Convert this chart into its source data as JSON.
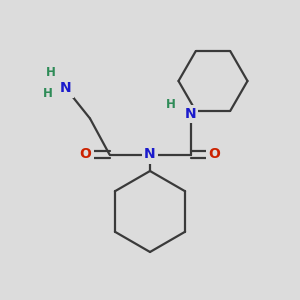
{
  "bg_color": "#dcdcdc",
  "atom_colors": {
    "C": "#3a3a3a",
    "N": "#1a1acc",
    "O": "#cc2200",
    "H": "#2e8b57"
  },
  "bond_color": "#3a3a3a",
  "bond_lw": 1.6,
  "figsize": [
    3.0,
    3.0
  ],
  "dpi": 100,
  "xlim": [
    0,
    10
  ],
  "ylim": [
    0,
    10
  ],
  "font_size_atom": 10,
  "font_size_H": 8.5
}
